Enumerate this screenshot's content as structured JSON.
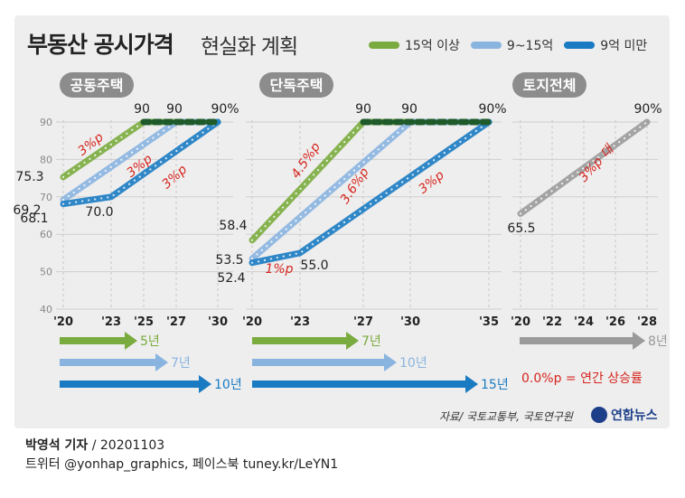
{
  "title": {
    "bold": "부동산 공시가격",
    "light": "현실화 계획"
  },
  "legend": [
    {
      "label": "15억 이상",
      "color": "#7aab3e"
    },
    {
      "label": "9~15억",
      "color": "#8ab4e0"
    },
    {
      "label": "9억 미만",
      "color": "#1a7bc2"
    }
  ],
  "growth_note": "0.0%p = 연간 상승률",
  "growth_note_color": "#d6251e",
  "source": "자료/ 국토교통부, 국토연구원",
  "brand": "연합뉴스",
  "footer": {
    "author_bold": "박영석 기자",
    "author_rest": "/ 20201103",
    "social": "트위터 @yonhap_graphics, 페이스북 tuney.kr/LeYN1"
  },
  "chart_data": [
    {
      "type": "line",
      "title": "공동주택",
      "ylim": [
        40,
        90
      ],
      "yticks": [
        40,
        50,
        60,
        70,
        80,
        90
      ],
      "x_ticks": [
        "'20",
        "'23",
        "'25",
        "'27",
        "'30"
      ],
      "x_years": [
        2020,
        2023,
        2025,
        2027,
        2030
      ],
      "series": [
        {
          "name": "15억 이상",
          "x": [
            2020,
            2025,
            2030
          ],
          "y": [
            75.3,
            90,
            90
          ],
          "dotted_from": 2025
        },
        {
          "name": "9~15억",
          "x": [
            2020,
            2027,
            2030
          ],
          "y": [
            69.2,
            90,
            90
          ],
          "dotted_from": 2027
        },
        {
          "name": "9억 미만",
          "x": [
            2020,
            2023,
            2030
          ],
          "y": [
            68.1,
            70.0,
            90
          ]
        }
      ],
      "value_labels": [
        "75.3",
        "69.2",
        "68.1",
        "70.0",
        "90",
        "90",
        "90%"
      ],
      "rate_labels": [
        "3%p",
        "3%p",
        "3%p"
      ],
      "durations": [
        "5년",
        "7년",
        "10년"
      ]
    },
    {
      "type": "line",
      "title": "단독주택",
      "ylim": [
        40,
        90
      ],
      "x_ticks": [
        "'20",
        "'23",
        "'27",
        "'30",
        "'35"
      ],
      "x_years": [
        2020,
        2023,
        2027,
        2030,
        2035
      ],
      "series": [
        {
          "name": "15억 이상",
          "x": [
            2020,
            2027,
            2035
          ],
          "y": [
            58.4,
            90,
            90
          ],
          "dotted_from": 2027
        },
        {
          "name": "9~15억",
          "x": [
            2020,
            2030,
            2035
          ],
          "y": [
            53.5,
            90,
            90
          ],
          "dotted_from": 2030
        },
        {
          "name": "9억 미만",
          "x": [
            2020,
            2023,
            2035
          ],
          "y": [
            52.4,
            55.0,
            90
          ]
        }
      ],
      "value_labels": [
        "58.4",
        "53.5",
        "52.4",
        "55.0",
        "90",
        "90",
        "90%"
      ],
      "rate_labels": [
        "4.5%p",
        "3.6%p",
        "3%p",
        "1%p"
      ],
      "durations": [
        "7년",
        "10년",
        "15년"
      ]
    },
    {
      "type": "line",
      "title": "토지전체",
      "ylim": [
        40,
        90
      ],
      "x_ticks": [
        "'20",
        "'22",
        "'24",
        "'26",
        "'28"
      ],
      "x_years": [
        2020,
        2022,
        2024,
        2026,
        2028
      ],
      "series": [
        {
          "name": "토지",
          "x": [
            2020,
            2028
          ],
          "y": [
            65.5,
            90
          ],
          "color": "#9a9a9a"
        }
      ],
      "value_labels": [
        "65.5",
        "90%"
      ],
      "rate_labels": [
        "3%p 대"
      ],
      "durations": [
        "8년"
      ]
    }
  ]
}
